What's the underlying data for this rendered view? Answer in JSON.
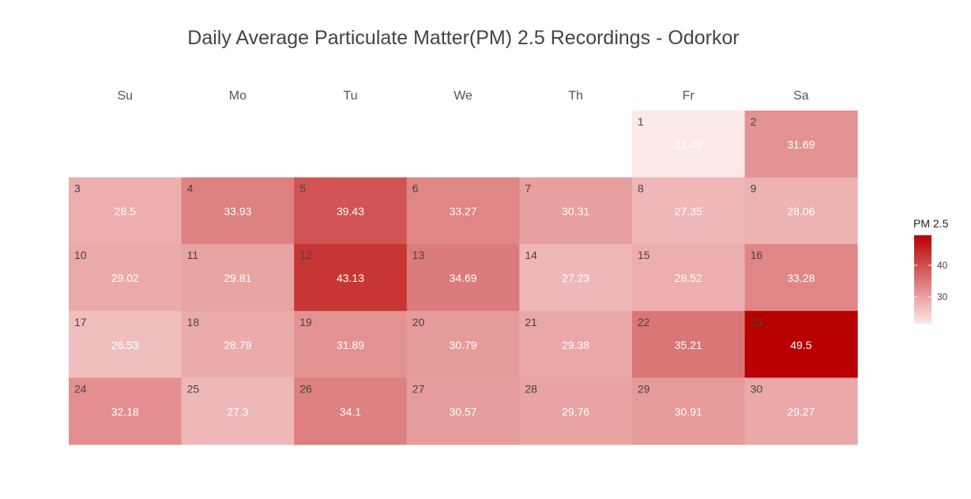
{
  "chart_data": {
    "type": "heatmap",
    "title": "Daily Average Particulate Matter(PM) 2.5 Recordings - Odorkor",
    "weekdays": [
      "Su",
      "Mo",
      "Tu",
      "We",
      "Th",
      "Fr",
      "Sa"
    ],
    "first_weekday_index": 5,
    "days": [
      1,
      2,
      3,
      4,
      5,
      6,
      7,
      8,
      9,
      10,
      11,
      12,
      13,
      14,
      15,
      16,
      17,
      18,
      19,
      20,
      21,
      22,
      23,
      24,
      25,
      26,
      27,
      28,
      29,
      30
    ],
    "values": [
      21.48,
      31.69,
      28.5,
      33.93,
      39.43,
      33.27,
      30.31,
      27.35,
      28.06,
      29.02,
      29.81,
      43.13,
      34.69,
      27.23,
      28.52,
      33.28,
      26.53,
      28.79,
      31.89,
      30.79,
      29.38,
      35.21,
      49.5,
      32.18,
      27.3,
      34.1,
      30.57,
      29.76,
      30.91,
      29.27
    ],
    "value_labels": [
      "21.48",
      "31.69",
      "28.5",
      "33.93",
      "39.43",
      "33.27",
      "30.31",
      "27.35",
      "28.06",
      "29.02",
      "29.81",
      "43.13",
      "34.69",
      "27.23",
      "28.52",
      "33.28",
      "26.53",
      "28.79",
      "31.89",
      "30.79",
      "29.38",
      "35.21",
      "49.5",
      "32.18",
      "27.3",
      "34.1",
      "30.57",
      "29.76",
      "30.91",
      "29.27"
    ],
    "color_low": "#fde8e8",
    "color_high": "#b80000",
    "legend": {
      "title": "PM 2.5",
      "ticks": [
        30,
        40
      ],
      "range": [
        21.48,
        49.5
      ],
      "placement": "right"
    }
  }
}
